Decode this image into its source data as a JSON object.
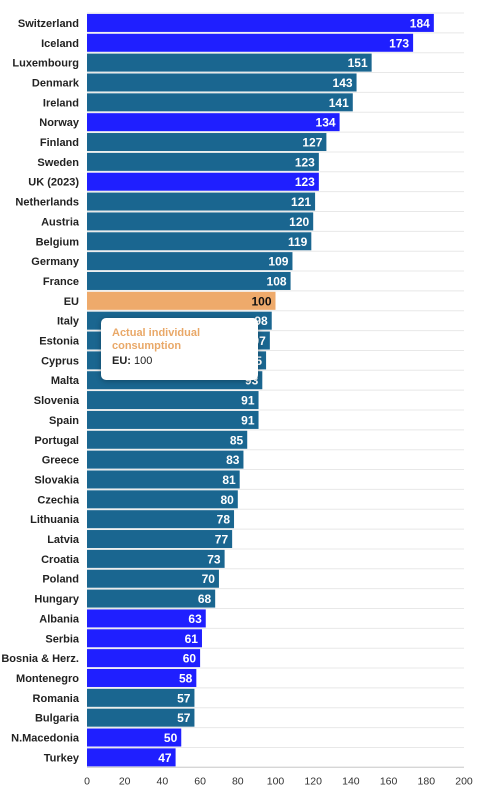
{
  "chart_data": {
    "type": "bar",
    "orientation": "horizontal",
    "categories": [
      "Switzerland",
      "Iceland",
      "Luxembourg",
      "Denmark",
      "Ireland",
      "Norway",
      "Finland",
      "Sweden",
      "UK (2023)",
      "Netherlands",
      "Austria",
      "Belgium",
      "Germany",
      "France",
      "EU",
      "Italy",
      "Estonia",
      "Cyprus",
      "Malta",
      "Slovenia",
      "Spain",
      "Portugal",
      "Greece",
      "Slovakia",
      "Czechia",
      "Lithuania",
      "Latvia",
      "Croatia",
      "Poland",
      "Hungary",
      "Albania",
      "Serbia",
      "Bosnia & Herz.",
      "Montenegro",
      "Romania",
      "Bulgaria",
      "N.Macedonia",
      "Turkey"
    ],
    "values": [
      184,
      173,
      151,
      143,
      141,
      134,
      127,
      123,
      123,
      121,
      120,
      119,
      109,
      108,
      100,
      98,
      97,
      95,
      93,
      91,
      91,
      85,
      83,
      81,
      80,
      78,
      77,
      73,
      70,
      68,
      63,
      61,
      60,
      58,
      57,
      57,
      50,
      47
    ],
    "groups": [
      "non-EU",
      "non-EU",
      "EU member",
      "EU member",
      "EU member",
      "non-EU",
      "EU member",
      "EU member",
      "non-EU",
      "EU member",
      "EU member",
      "EU member",
      "EU member",
      "EU member",
      "EU average",
      "EU member",
      "EU member",
      "EU member",
      "EU member",
      "EU member",
      "EU member",
      "EU member",
      "EU member",
      "EU member",
      "EU member",
      "EU member",
      "EU member",
      "EU member",
      "EU member",
      "EU member",
      "non-EU",
      "non-EU",
      "non-EU",
      "non-EU",
      "EU member",
      "EU member",
      "non-EU",
      "non-EU"
    ],
    "colors": {
      "non-EU": "#1f1fff",
      "EU member": "#1a6690",
      "EU average": "#eeaa6b"
    },
    "x_ticks": [
      0,
      20,
      40,
      60,
      80,
      100,
      120,
      140,
      160,
      180,
      200
    ],
    "xlim": [
      0,
      200
    ],
    "xlabel": "",
    "ylabel": "",
    "title": "",
    "grid": true,
    "legend": "none"
  },
  "tooltip": {
    "title": "Actual individual consumption",
    "key": "EU:",
    "value": "100"
  }
}
